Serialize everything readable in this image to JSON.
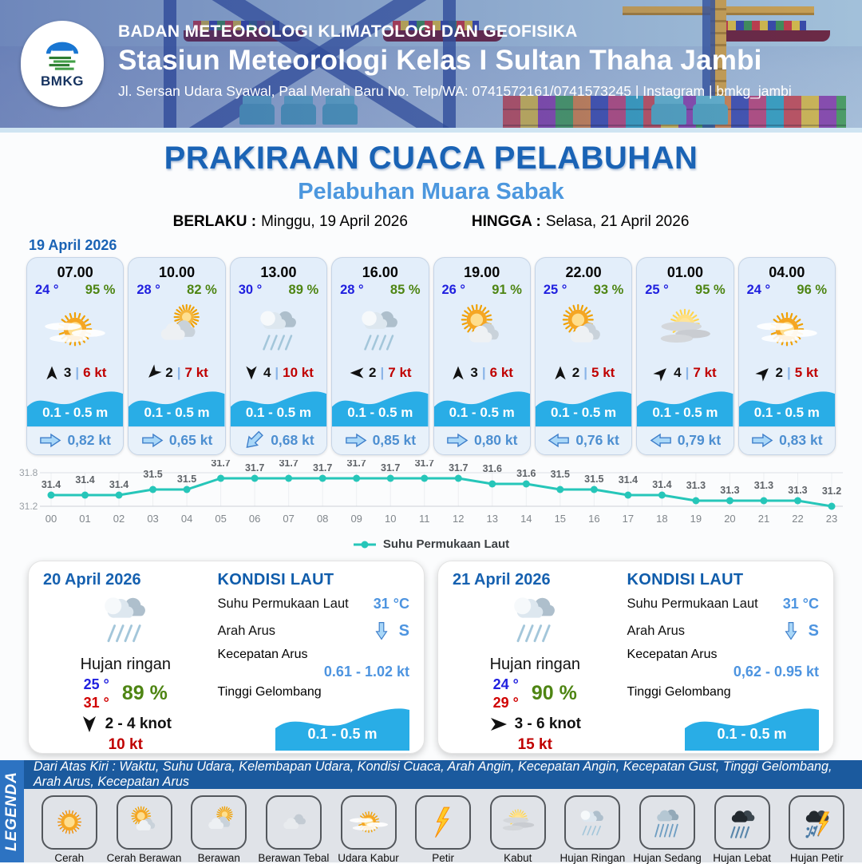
{
  "header": {
    "logo_text": "BMKG",
    "agency": "BADAN METEOROLOGI KLIMATOLOGI DAN GEOFISIKA",
    "station": "Stasiun Meteorologi Kelas I Sultan Thaha Jambi",
    "address": "Jl. Sersan Udara Syawal, Paal Merah Baru No. Telp/WA: 0741572161/0741573245 | Instagram | bmkg_jambi"
  },
  "title": {
    "main": "PRAKIRAAN CUACA PELABUHAN",
    "sub": "Pelabuhan Muara Sabak",
    "berlaku_label": "BERLAKU :",
    "berlaku_value": "Minggu, 19 April 2026",
    "hingga_label": "HINGGA :",
    "hingga_value": "Selasa, 21 April 2026",
    "day_label": "19 April 2026"
  },
  "cards": [
    {
      "time": "07.00",
      "temp": "24 °",
      "rh": "95 %",
      "icon": "udara-kabur",
      "wind_deg": 0,
      "wind_scale": "3",
      "sep": "|",
      "wind_kt": "6 kt",
      "wave": "0.1 - 0.5 m",
      "cur_deg": 0,
      "current": "0,82 kt"
    },
    {
      "time": "10.00",
      "temp": "28 °",
      "rh": "82 %",
      "icon": "berawan",
      "wind_deg": 225,
      "wind_scale": "2",
      "sep": "|",
      "wind_kt": "7 kt",
      "wave": "0.1 - 0.5 m",
      "cur_deg": 0,
      "current": "0,65 kt"
    },
    {
      "time": "13.00",
      "temp": "30 °",
      "rh": "89 %",
      "icon": "hujan-ringan",
      "wind_deg": 180,
      "wind_scale": "4",
      "sep": "|",
      "wind_kt": "10 kt",
      "wave": "0.1 - 0.5 m",
      "cur_deg": 135,
      "current": "0,68 kt"
    },
    {
      "time": "16.00",
      "temp": "28 °",
      "rh": "85 %",
      "icon": "hujan-ringan",
      "wind_deg": 270,
      "wind_scale": "2",
      "sep": "|",
      "wind_kt": "7 kt",
      "wave": "0.1 - 0.5 m",
      "cur_deg": 0,
      "current": "0,85 kt"
    },
    {
      "time": "19.00",
      "temp": "26 °",
      "rh": "91 %",
      "icon": "cerah-berawan",
      "wind_deg": 0,
      "wind_scale": "3",
      "sep": "|",
      "wind_kt": "6 kt",
      "wave": "0.1 - 0.5 m",
      "cur_deg": 0,
      "current": "0,80 kt"
    },
    {
      "time": "22.00",
      "temp": "25 °",
      "rh": "93 %",
      "icon": "cerah-berawan",
      "wind_deg": 0,
      "wind_scale": "2",
      "sep": "|",
      "wind_kt": "5 kt",
      "wave": "0.1 - 0.5 m",
      "cur_deg": 180,
      "current": "0,76 kt"
    },
    {
      "time": "01.00",
      "temp": "25 °",
      "rh": "95 %",
      "icon": "kabut",
      "wind_deg": 45,
      "wind_scale": "4",
      "sep": "|",
      "wind_kt": "7 kt",
      "wave": "0.1 - 0.5 m",
      "cur_deg": 180,
      "current": "0,79 kt"
    },
    {
      "time": "04.00",
      "temp": "24 °",
      "rh": "96 %",
      "icon": "udara-kabur",
      "wind_deg": 45,
      "wind_scale": "2",
      "sep": "|",
      "wind_kt": "5 kt",
      "wave": "0.1 - 0.5 m",
      "cur_deg": 0,
      "current": "0,83 kt"
    }
  ],
  "chart_data": {
    "type": "line",
    "x": [
      "00",
      "01",
      "02",
      "03",
      "04",
      "05",
      "06",
      "07",
      "08",
      "09",
      "10",
      "11",
      "12",
      "13",
      "14",
      "15",
      "16",
      "17",
      "18",
      "19",
      "20",
      "21",
      "22",
      "23"
    ],
    "series": [
      {
        "name": "Suhu Permukaan Laut",
        "values": [
          31.4,
          31.4,
          31.4,
          31.5,
          31.5,
          31.7,
          31.7,
          31.7,
          31.7,
          31.7,
          31.7,
          31.7,
          31.7,
          31.6,
          31.6,
          31.5,
          31.5,
          31.4,
          31.4,
          31.3,
          31.3,
          31.3,
          31.3,
          31.2
        ]
      }
    ],
    "ylim": [
      31.2,
      31.8
    ],
    "yticks": [
      "31.8",
      "31.2"
    ],
    "line_color": "#26c6b9",
    "grid": true,
    "legend_position": "bottom",
    "legend_label": "Suhu Permukaan Laut"
  },
  "day_panels": [
    {
      "date": "20 April 2026",
      "icon": "hujan-ringan",
      "weather": "Hujan ringan",
      "temp_min": "25 °",
      "temp_max": "31 °",
      "rh": "89 %",
      "wind_deg": 180,
      "wind_range": "2  - 4 knot",
      "gust": "10 kt",
      "sea": {
        "heading": "KONDISI LAUT",
        "sst_label": "Suhu Permukaan Laut",
        "sst": "31 °C",
        "dir_label": "Arah Arus",
        "dir_deg": 90,
        "dir_text": "S",
        "speed_label": "Kecepatan Arus",
        "speed": "0.61  - 1.02 kt",
        "wave_label": "Tinggi Gelombang",
        "wave": "0.1 - 0.5 m"
      }
    },
    {
      "date": "21 April 2026",
      "icon": "hujan-ringan",
      "weather": "Hujan ringan",
      "temp_min": "24 °",
      "temp_max": "29 °",
      "rh": "90 %",
      "wind_deg": 90,
      "wind_range": "3  - 6 knot",
      "gust": "15 kt",
      "sea": {
        "heading": "KONDISI LAUT",
        "sst_label": "Suhu Permukaan Laut",
        "sst": "31 °C",
        "dir_label": "Arah Arus",
        "dir_deg": 90,
        "dir_text": "S",
        "speed_label": "Kecepatan Arus",
        "speed": "0,62  - 0.95 kt",
        "wave_label": "Tinggi Gelombang",
        "wave": "0.1 - 0.5 m"
      }
    }
  ],
  "legend": {
    "ribbon": "LEGENDA",
    "note": "Dari Atas Kiri : Waktu, Suhu Udara, Kelembapan Udara, Kondisi Cuaca, Arah Angin, Kecepatan Angin, Kecepatan Gust, Tinggi Gelombang, Arah Arus, Kecepatan Arus",
    "items": [
      {
        "label": "Cerah",
        "icon": "cerah"
      },
      {
        "label": "Cerah Berawan",
        "icon": "cerah-berawan"
      },
      {
        "label": "Berawan",
        "icon": "berawan"
      },
      {
        "label": "Berawan Tebal",
        "icon": "berawan-tebal"
      },
      {
        "label": "Udara Kabur",
        "icon": "udara-kabur"
      },
      {
        "label": "Petir",
        "icon": "petir"
      },
      {
        "label": "Kabut",
        "icon": "kabut"
      },
      {
        "label": "Hujan Ringan",
        "icon": "hujan-ringan"
      },
      {
        "label": "Hujan Sedang",
        "icon": "hujan-sedang"
      },
      {
        "label": "Hujan Lebat",
        "icon": "hujan-lebat"
      },
      {
        "label": "Hujan Petir",
        "icon": "hujan-petir"
      }
    ]
  }
}
